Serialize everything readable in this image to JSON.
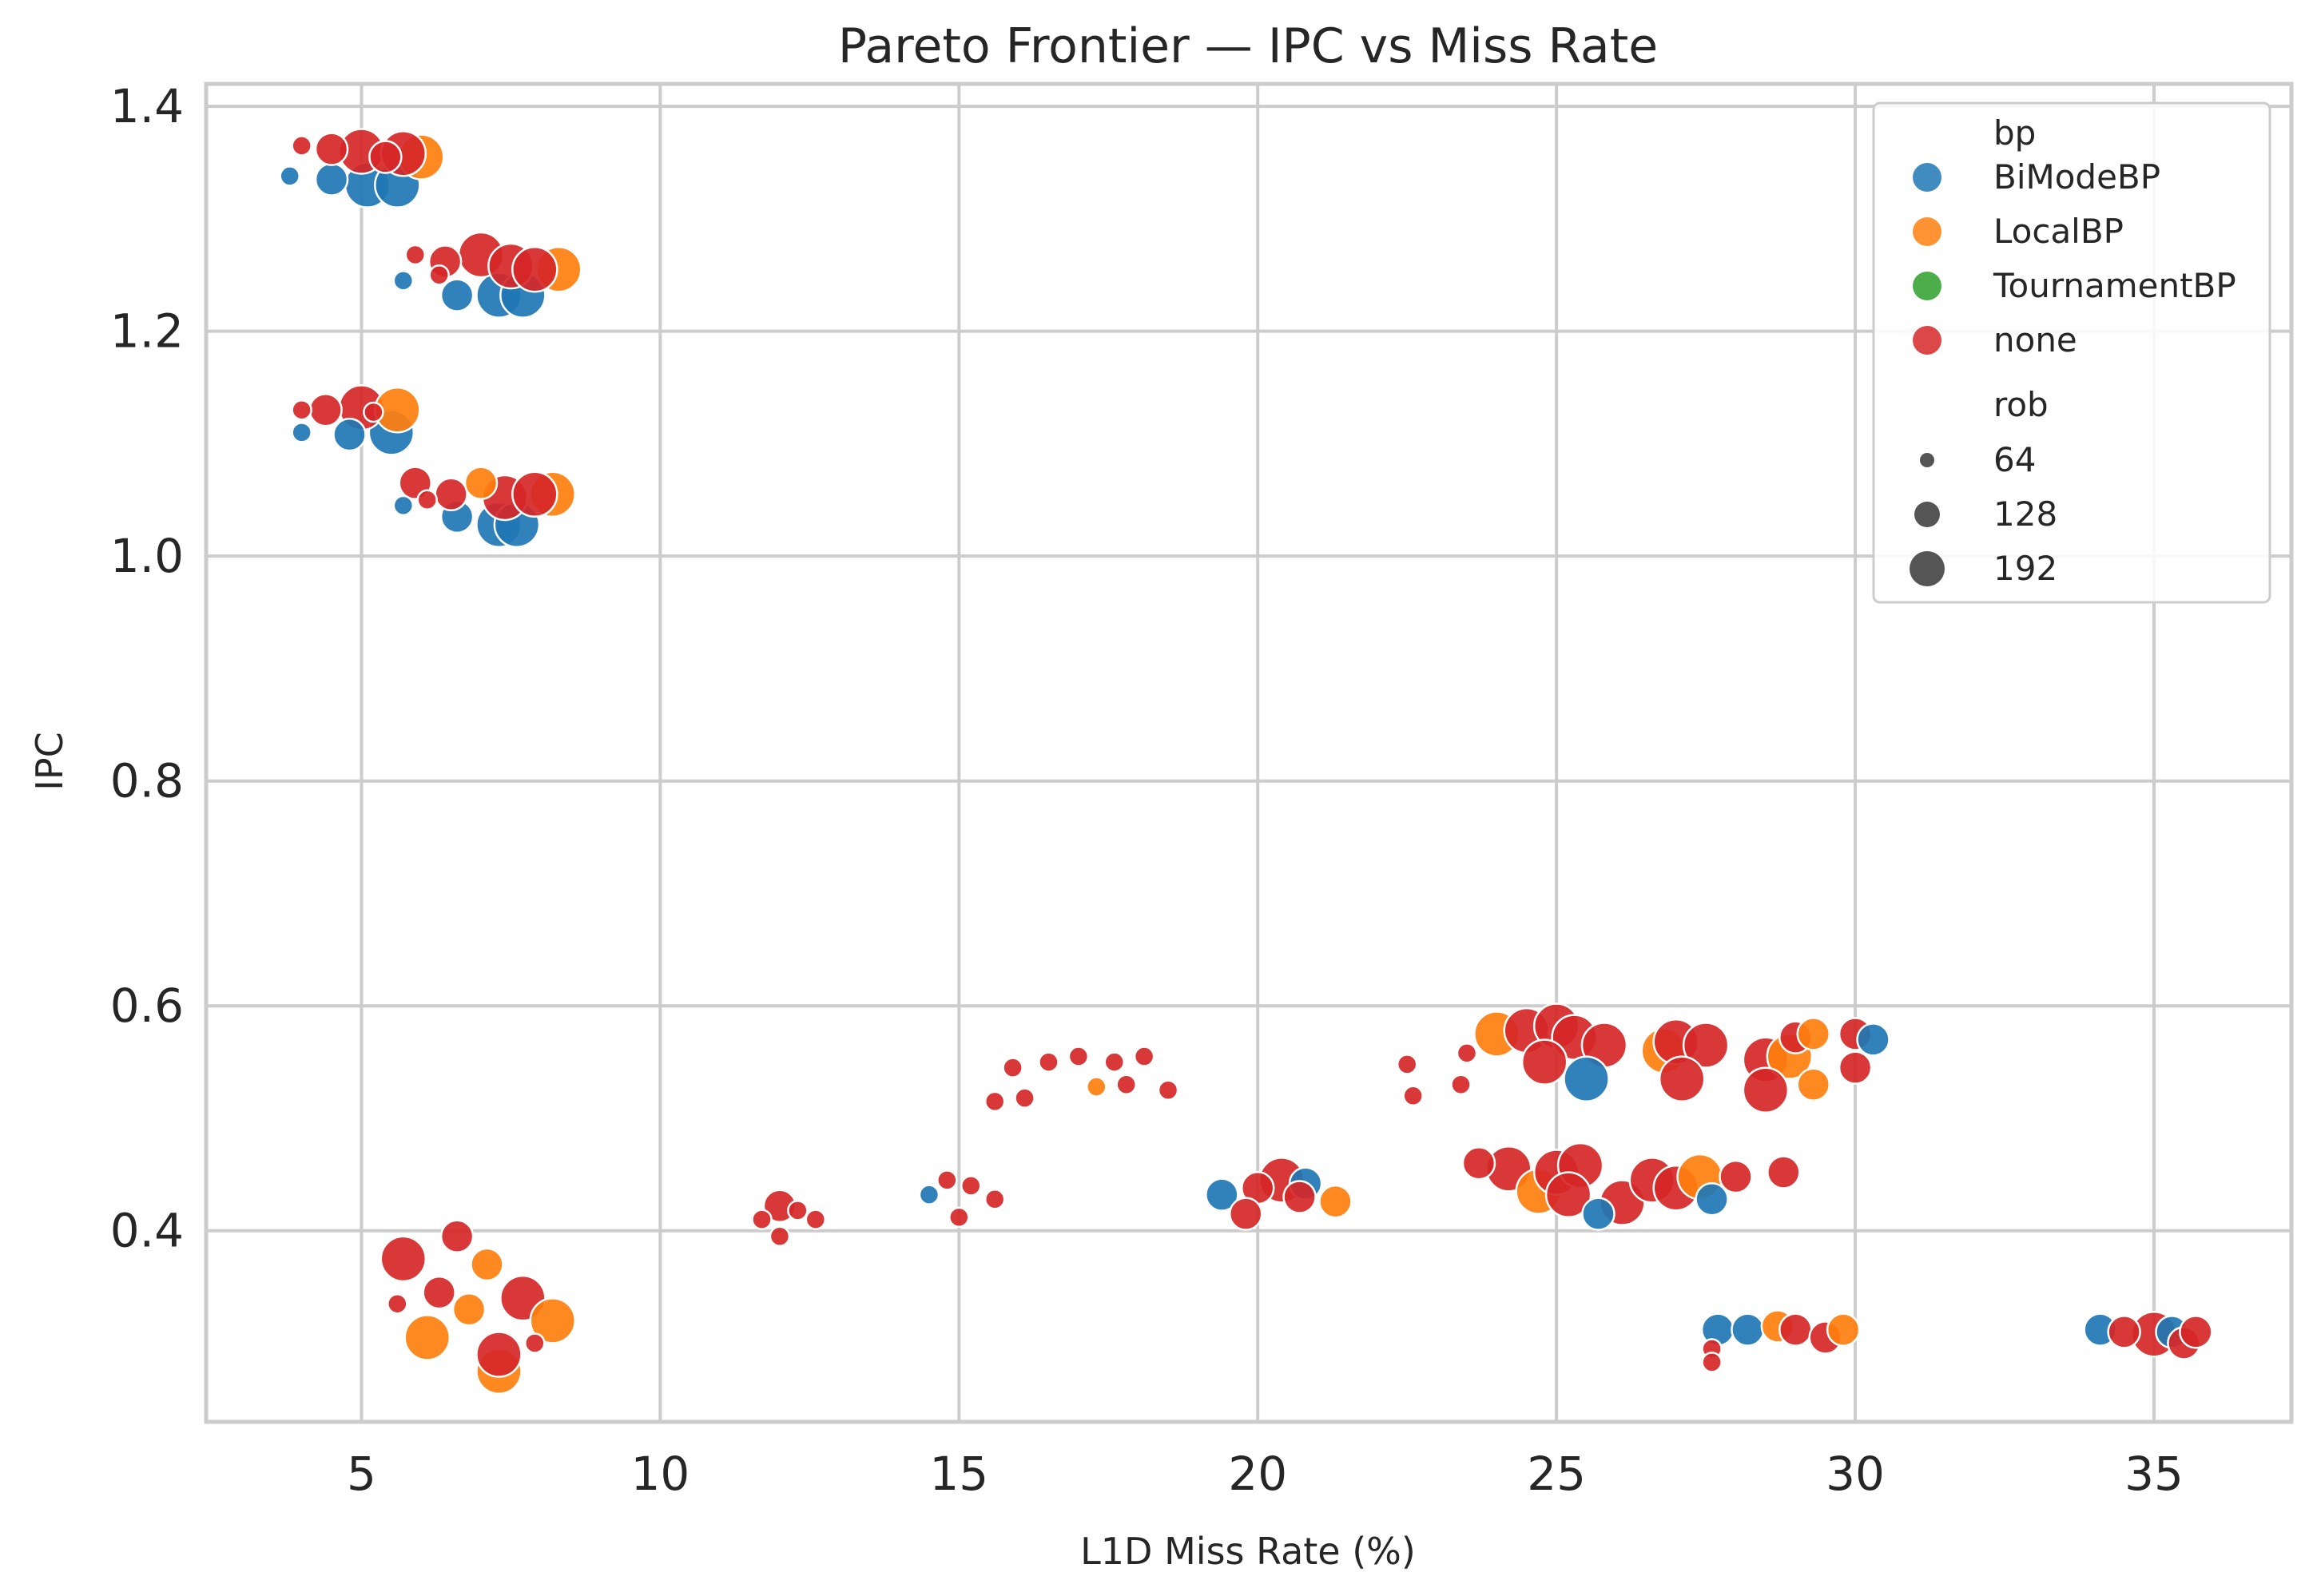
{
  "chart_data": {
    "type": "scatter",
    "title": "Pareto Frontier — IPC vs Miss Rate",
    "xlabel": "L1D Miss Rate (%)",
    "ylabel": "IPC",
    "xlim": [
      2.4,
      37.3
    ],
    "ylim": [
      0.23,
      1.42
    ],
    "xticks": [
      5,
      10,
      15,
      20,
      25,
      30,
      35
    ],
    "yticks": [
      0.4,
      0.6,
      0.8,
      1.0,
      1.2,
      1.4
    ],
    "grid": true,
    "legend_position": "top-right",
    "hue_title": "bp",
    "size_title": "rob",
    "series": [
      {
        "name": "BiModeBP",
        "color": "#1f77b4"
      },
      {
        "name": "LocalBP",
        "color": "#ff7f0e"
      },
      {
        "name": "TournamentBP",
        "color": "#2ca02c"
      },
      {
        "name": "none",
        "color": "#d62728"
      }
    ],
    "sizes": [
      {
        "label": "64",
        "value": 64
      },
      {
        "label": "128",
        "value": 128
      },
      {
        "label": "192",
        "value": 192
      }
    ],
    "points": [
      {
        "x": 3.8,
        "y": 1.338,
        "series": "BiModeBP",
        "rob": 64
      },
      {
        "x": 4.5,
        "y": 1.335,
        "series": "BiModeBP",
        "rob": 128
      },
      {
        "x": 5.1,
        "y": 1.33,
        "series": "BiModeBP",
        "rob": 192
      },
      {
        "x": 5.6,
        "y": 1.33,
        "series": "BiModeBP",
        "rob": 192
      },
      {
        "x": 4.0,
        "y": 1.365,
        "series": "none",
        "rob": 64
      },
      {
        "x": 4.5,
        "y": 1.362,
        "series": "none",
        "rob": 128
      },
      {
        "x": 5.0,
        "y": 1.36,
        "series": "none",
        "rob": 192
      },
      {
        "x": 5.4,
        "y": 1.355,
        "series": "none",
        "rob": 128
      },
      {
        "x": 6.0,
        "y": 1.355,
        "series": "LocalBP",
        "rob": 192
      },
      {
        "x": 5.7,
        "y": 1.358,
        "series": "none",
        "rob": 192
      },
      {
        "x": 5.7,
        "y": 1.245,
        "series": "BiModeBP",
        "rob": 64
      },
      {
        "x": 6.6,
        "y": 1.232,
        "series": "BiModeBP",
        "rob": 128
      },
      {
        "x": 7.3,
        "y": 1.232,
        "series": "BiModeBP",
        "rob": 192
      },
      {
        "x": 7.7,
        "y": 1.232,
        "series": "BiModeBP",
        "rob": 192
      },
      {
        "x": 5.9,
        "y": 1.268,
        "series": "none",
        "rob": 64
      },
      {
        "x": 6.4,
        "y": 1.262,
        "series": "none",
        "rob": 128
      },
      {
        "x": 7.0,
        "y": 1.268,
        "series": "none",
        "rob": 192
      },
      {
        "x": 7.5,
        "y": 1.258,
        "series": "none",
        "rob": 192
      },
      {
        "x": 8.3,
        "y": 1.255,
        "series": "LocalBP",
        "rob": 192
      },
      {
        "x": 7.9,
        "y": 1.255,
        "series": "none",
        "rob": 192
      },
      {
        "x": 6.3,
        "y": 1.25,
        "series": "none",
        "rob": 64
      },
      {
        "x": 4.0,
        "y": 1.11,
        "series": "BiModeBP",
        "rob": 64
      },
      {
        "x": 4.8,
        "y": 1.108,
        "series": "BiModeBP",
        "rob": 128
      },
      {
        "x": 5.5,
        "y": 1.11,
        "series": "BiModeBP",
        "rob": 192
      },
      {
        "x": 4.0,
        "y": 1.13,
        "series": "none",
        "rob": 64
      },
      {
        "x": 4.4,
        "y": 1.13,
        "series": "none",
        "rob": 128
      },
      {
        "x": 5.0,
        "y": 1.132,
        "series": "none",
        "rob": 192
      },
      {
        "x": 5.6,
        "y": 1.13,
        "series": "LocalBP",
        "rob": 192
      },
      {
        "x": 5.2,
        "y": 1.128,
        "series": "none",
        "rob": 64
      },
      {
        "x": 5.7,
        "y": 1.045,
        "series": "BiModeBP",
        "rob": 64
      },
      {
        "x": 6.6,
        "y": 1.035,
        "series": "BiModeBP",
        "rob": 128
      },
      {
        "x": 7.3,
        "y": 1.028,
        "series": "BiModeBP",
        "rob": 192
      },
      {
        "x": 7.6,
        "y": 1.028,
        "series": "BiModeBP",
        "rob": 192
      },
      {
        "x": 5.9,
        "y": 1.065,
        "series": "none",
        "rob": 128
      },
      {
        "x": 6.5,
        "y": 1.055,
        "series": "none",
        "rob": 128
      },
      {
        "x": 7.0,
        "y": 1.065,
        "series": "LocalBP",
        "rob": 128
      },
      {
        "x": 7.4,
        "y": 1.052,
        "series": "none",
        "rob": 192
      },
      {
        "x": 8.2,
        "y": 1.055,
        "series": "LocalBP",
        "rob": 192
      },
      {
        "x": 7.9,
        "y": 1.055,
        "series": "none",
        "rob": 192
      },
      {
        "x": 6.1,
        "y": 1.05,
        "series": "none",
        "rob": 64
      },
      {
        "x": 5.7,
        "y": 0.375,
        "series": "none",
        "rob": 192
      },
      {
        "x": 6.6,
        "y": 0.395,
        "series": "none",
        "rob": 128
      },
      {
        "x": 7.1,
        "y": 0.37,
        "series": "LocalBP",
        "rob": 128
      },
      {
        "x": 6.1,
        "y": 0.305,
        "series": "LocalBP",
        "rob": 192
      },
      {
        "x": 6.3,
        "y": 0.345,
        "series": "none",
        "rob": 128
      },
      {
        "x": 6.8,
        "y": 0.33,
        "series": "LocalBP",
        "rob": 128
      },
      {
        "x": 7.3,
        "y": 0.275,
        "series": "LocalBP",
        "rob": 192
      },
      {
        "x": 7.3,
        "y": 0.29,
        "series": "none",
        "rob": 192
      },
      {
        "x": 7.7,
        "y": 0.34,
        "series": "none",
        "rob": 192
      },
      {
        "x": 8.2,
        "y": 0.32,
        "series": "LocalBP",
        "rob": 192
      },
      {
        "x": 7.9,
        "y": 0.3,
        "series": "none",
        "rob": 64
      },
      {
        "x": 5.6,
        "y": 0.335,
        "series": "none",
        "rob": 64
      },
      {
        "x": 11.7,
        "y": 0.41,
        "series": "none",
        "rob": 64
      },
      {
        "x": 12.0,
        "y": 0.422,
        "series": "none",
        "rob": 128
      },
      {
        "x": 12.3,
        "y": 0.418,
        "series": "none",
        "rob": 64
      },
      {
        "x": 12.6,
        "y": 0.41,
        "series": "none",
        "rob": 64
      },
      {
        "x": 12.0,
        "y": 0.395,
        "series": "none",
        "rob": 64
      },
      {
        "x": 14.5,
        "y": 0.432,
        "series": "BiModeBP",
        "rob": 64
      },
      {
        "x": 14.8,
        "y": 0.445,
        "series": "none",
        "rob": 64
      },
      {
        "x": 15.2,
        "y": 0.44,
        "series": "none",
        "rob": 64
      },
      {
        "x": 15.6,
        "y": 0.428,
        "series": "none",
        "rob": 64
      },
      {
        "x": 15.0,
        "y": 0.412,
        "series": "none",
        "rob": 64
      },
      {
        "x": 15.6,
        "y": 0.515,
        "series": "none",
        "rob": 64
      },
      {
        "x": 15.9,
        "y": 0.545,
        "series": "none",
        "rob": 64
      },
      {
        "x": 16.5,
        "y": 0.55,
        "series": "none",
        "rob": 64
      },
      {
        "x": 17.0,
        "y": 0.555,
        "series": "none",
        "rob": 64
      },
      {
        "x": 17.6,
        "y": 0.55,
        "series": "none",
        "rob": 64
      },
      {
        "x": 18.1,
        "y": 0.555,
        "series": "none",
        "rob": 64
      },
      {
        "x": 17.3,
        "y": 0.528,
        "series": "LocalBP",
        "rob": 64
      },
      {
        "x": 17.8,
        "y": 0.53,
        "series": "none",
        "rob": 64
      },
      {
        "x": 18.5,
        "y": 0.525,
        "series": "none",
        "rob": 64
      },
      {
        "x": 16.1,
        "y": 0.518,
        "series": "none",
        "rob": 64
      },
      {
        "x": 19.4,
        "y": 0.432,
        "series": "BiModeBP",
        "rob": 128
      },
      {
        "x": 20.0,
        "y": 0.438,
        "series": "none",
        "rob": 128
      },
      {
        "x": 20.4,
        "y": 0.445,
        "series": "none",
        "rob": 192
      },
      {
        "x": 20.8,
        "y": 0.442,
        "series": "BiModeBP",
        "rob": 128
      },
      {
        "x": 21.3,
        "y": 0.426,
        "series": "LocalBP",
        "rob": 128
      },
      {
        "x": 19.8,
        "y": 0.415,
        "series": "none",
        "rob": 128
      },
      {
        "x": 20.7,
        "y": 0.43,
        "series": "none",
        "rob": 128
      },
      {
        "x": 22.5,
        "y": 0.548,
        "series": "none",
        "rob": 64
      },
      {
        "x": 23.5,
        "y": 0.558,
        "series": "none",
        "rob": 64
      },
      {
        "x": 22.6,
        "y": 0.52,
        "series": "none",
        "rob": 64
      },
      {
        "x": 23.4,
        "y": 0.53,
        "series": "none",
        "rob": 64
      },
      {
        "x": 24.0,
        "y": 0.575,
        "series": "LocalBP",
        "rob": 192
      },
      {
        "x": 24.5,
        "y": 0.578,
        "series": "none",
        "rob": 192
      },
      {
        "x": 25.0,
        "y": 0.582,
        "series": "none",
        "rob": 192
      },
      {
        "x": 25.3,
        "y": 0.572,
        "series": "none",
        "rob": 192
      },
      {
        "x": 25.8,
        "y": 0.565,
        "series": "none",
        "rob": 192
      },
      {
        "x": 24.8,
        "y": 0.55,
        "series": "none",
        "rob": 192
      },
      {
        "x": 25.5,
        "y": 0.535,
        "series": "BiModeBP",
        "rob": 192
      },
      {
        "x": 26.8,
        "y": 0.56,
        "series": "LocalBP",
        "rob": 192
      },
      {
        "x": 27.0,
        "y": 0.568,
        "series": "none",
        "rob": 192
      },
      {
        "x": 27.5,
        "y": 0.565,
        "series": "none",
        "rob": 192
      },
      {
        "x": 27.1,
        "y": 0.535,
        "series": "none",
        "rob": 192
      },
      {
        "x": 28.5,
        "y": 0.552,
        "series": "none",
        "rob": 192
      },
      {
        "x": 28.9,
        "y": 0.555,
        "series": "LocalBP",
        "rob": 192
      },
      {
        "x": 28.5,
        "y": 0.525,
        "series": "none",
        "rob": 192
      },
      {
        "x": 29.0,
        "y": 0.572,
        "series": "none",
        "rob": 128
      },
      {
        "x": 29.3,
        "y": 0.53,
        "series": "LocalBP",
        "rob": 128
      },
      {
        "x": 29.3,
        "y": 0.575,
        "series": "LocalBP",
        "rob": 128
      },
      {
        "x": 30.0,
        "y": 0.575,
        "series": "none",
        "rob": 128
      },
      {
        "x": 30.3,
        "y": 0.57,
        "series": "BiModeBP",
        "rob": 128
      },
      {
        "x": 30.0,
        "y": 0.545,
        "series": "none",
        "rob": 128
      },
      {
        "x": 23.7,
        "y": 0.46,
        "series": "none",
        "rob": 128
      },
      {
        "x": 24.2,
        "y": 0.455,
        "series": "none",
        "rob": 192
      },
      {
        "x": 24.7,
        "y": 0.435,
        "series": "LocalBP",
        "rob": 192
      },
      {
        "x": 25.0,
        "y": 0.452,
        "series": "none",
        "rob": 192
      },
      {
        "x": 25.4,
        "y": 0.458,
        "series": "none",
        "rob": 192
      },
      {
        "x": 25.7,
        "y": 0.415,
        "series": "BiModeBP",
        "rob": 128
      },
      {
        "x": 26.1,
        "y": 0.425,
        "series": "none",
        "rob": 192
      },
      {
        "x": 26.6,
        "y": 0.445,
        "series": "none",
        "rob": 192
      },
      {
        "x": 27.0,
        "y": 0.438,
        "series": "none",
        "rob": 192
      },
      {
        "x": 27.4,
        "y": 0.448,
        "series": "LocalBP",
        "rob": 192
      },
      {
        "x": 27.6,
        "y": 0.428,
        "series": "BiModeBP",
        "rob": 128
      },
      {
        "x": 28.0,
        "y": 0.448,
        "series": "none",
        "rob": 128
      },
      {
        "x": 28.8,
        "y": 0.452,
        "series": "none",
        "rob": 128
      },
      {
        "x": 25.2,
        "y": 0.432,
        "series": "none",
        "rob": 192
      },
      {
        "x": 27.7,
        "y": 0.312,
        "series": "BiModeBP",
        "rob": 128
      },
      {
        "x": 28.2,
        "y": 0.312,
        "series": "BiModeBP",
        "rob": 128
      },
      {
        "x": 28.7,
        "y": 0.315,
        "series": "LocalBP",
        "rob": 128
      },
      {
        "x": 29.0,
        "y": 0.312,
        "series": "none",
        "rob": 128
      },
      {
        "x": 29.5,
        "y": 0.305,
        "series": "none",
        "rob": 128
      },
      {
        "x": 29.8,
        "y": 0.312,
        "series": "LocalBP",
        "rob": 128
      },
      {
        "x": 27.6,
        "y": 0.295,
        "series": "none",
        "rob": 64
      },
      {
        "x": 27.6,
        "y": 0.283,
        "series": "none",
        "rob": 64
      },
      {
        "x": 34.1,
        "y": 0.312,
        "series": "BiModeBP",
        "rob": 128
      },
      {
        "x": 34.5,
        "y": 0.31,
        "series": "none",
        "rob": 128
      },
      {
        "x": 35.0,
        "y": 0.308,
        "series": "none",
        "rob": 192
      },
      {
        "x": 35.3,
        "y": 0.31,
        "series": "BiModeBP",
        "rob": 128
      },
      {
        "x": 35.5,
        "y": 0.3,
        "series": "none",
        "rob": 128
      },
      {
        "x": 35.7,
        "y": 0.31,
        "series": "none",
        "rob": 128
      }
    ]
  }
}
